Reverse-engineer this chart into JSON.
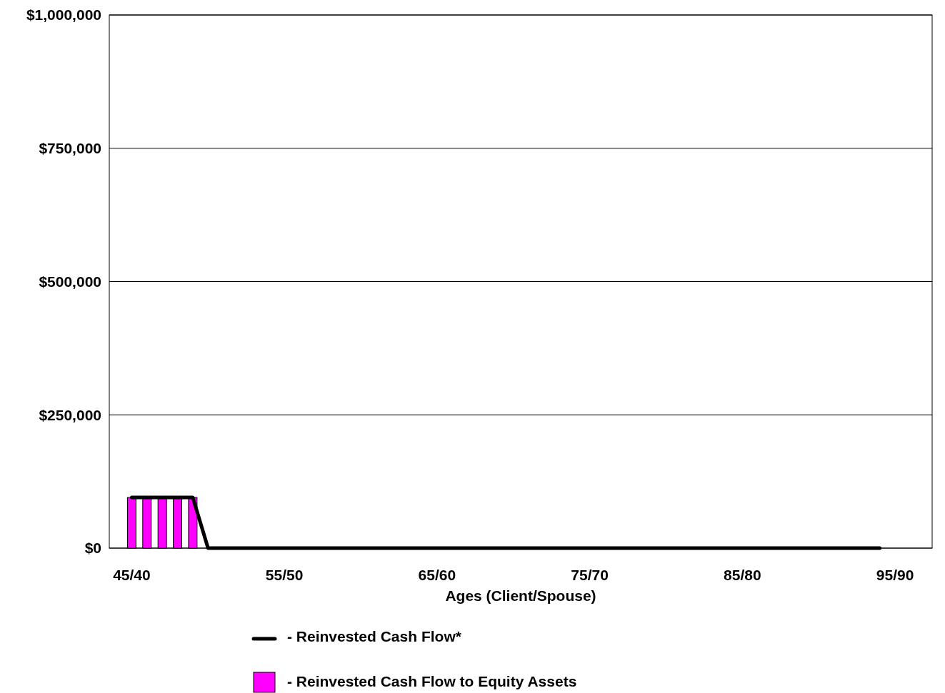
{
  "chart_data": {
    "type": "line",
    "xlabel": "Ages (Client/Spouse)",
    "categories": [
      "45/40",
      null,
      null,
      null,
      null,
      null,
      null,
      null,
      null,
      null,
      "55/50",
      null,
      null,
      null,
      null,
      null,
      null,
      null,
      null,
      null,
      "65/60",
      null,
      null,
      null,
      null,
      null,
      null,
      null,
      null,
      null,
      "75/70",
      null,
      null,
      null,
      null,
      null,
      null,
      null,
      null,
      null,
      "85/80",
      null,
      null,
      null,
      null,
      null,
      null,
      null,
      null,
      null,
      "95/90"
    ],
    "ylim": [
      0,
      1000000
    ],
    "yticks": [
      {
        "value": 0,
        "label": "$0"
      },
      {
        "value": 250000,
        "label": "$250,000"
      },
      {
        "value": 500000,
        "label": "$500,000"
      },
      {
        "value": 750000,
        "label": "$750,000"
      },
      {
        "value": 1000000,
        "label": "$1,000,000"
      }
    ],
    "grid": "y",
    "legend": "bottom",
    "series": [
      {
        "name": "- Reinvested Cash Flow to Equity Assets",
        "type": "bar",
        "color": "#ff00ff",
        "values": [
          95000,
          95000,
          95000,
          95000,
          95000,
          null,
          null,
          null,
          null,
          null,
          null,
          null,
          null,
          null,
          null,
          null,
          null,
          null,
          null,
          null,
          null,
          null,
          null,
          null,
          null,
          null,
          null,
          null,
          null,
          null,
          null,
          null,
          null,
          null,
          null,
          null,
          null,
          null,
          null,
          null,
          null,
          null,
          null,
          null,
          null,
          null,
          null,
          null,
          null,
          null,
          null
        ]
      },
      {
        "name": "- Reinvested Cash Flow*",
        "color": "#000000",
        "values": [
          95000,
          95000,
          95000,
          95000,
          95000,
          0,
          0,
          0,
          0,
          0,
          0,
          0,
          0,
          0,
          0,
          0,
          0,
          0,
          0,
          0,
          0,
          0,
          0,
          0,
          0,
          0,
          0,
          0,
          0,
          0,
          0,
          0,
          0,
          0,
          0,
          0,
          0,
          0,
          0,
          0,
          0,
          0,
          0,
          0,
          0,
          0,
          0,
          0,
          0,
          0,
          null
        ]
      }
    ]
  }
}
